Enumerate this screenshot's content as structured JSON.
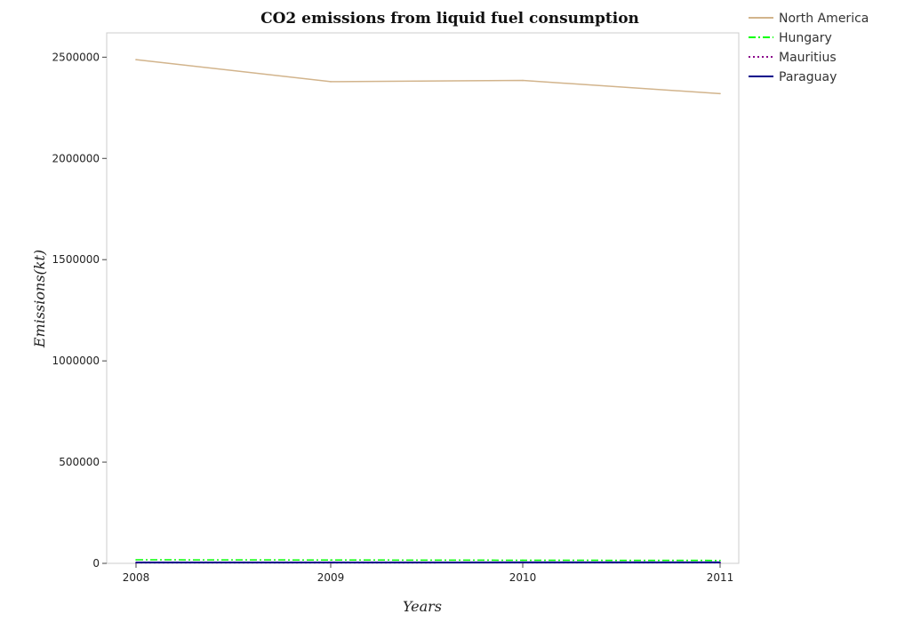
{
  "chart_data": {
    "type": "line",
    "title": "CO2 emissions from liquid fuel consumption",
    "xlabel": "Years",
    "ylabel": "Emissions(kt)",
    "categories": [
      "2008",
      "2009",
      "2010",
      "2011"
    ],
    "y_ticks": [
      "0",
      "500000",
      "1000000",
      "1500000",
      "2000000",
      "2500000"
    ],
    "ylim": [
      0,
      2620000
    ],
    "grid": false,
    "legend_position": "top-right",
    "series": [
      {
        "name": "North America",
        "color": "#d2b48c",
        "dash": "solid",
        "values": [
          2488000,
          2379000,
          2385000,
          2320000
        ]
      },
      {
        "name": "Hungary",
        "color": "#00ff00",
        "dash": "dashdot",
        "values": [
          17500,
          16500,
          15500,
          14500
        ]
      },
      {
        "name": "Mauritius",
        "color": "#8b008b",
        "dash": "dotted",
        "values": [
          2900,
          2900,
          3100,
          3200
        ]
      },
      {
        "name": "Paraguay",
        "color": "#00008b",
        "dash": "solid",
        "values": [
          4200,
          4500,
          4700,
          5000
        ]
      }
    ]
  }
}
